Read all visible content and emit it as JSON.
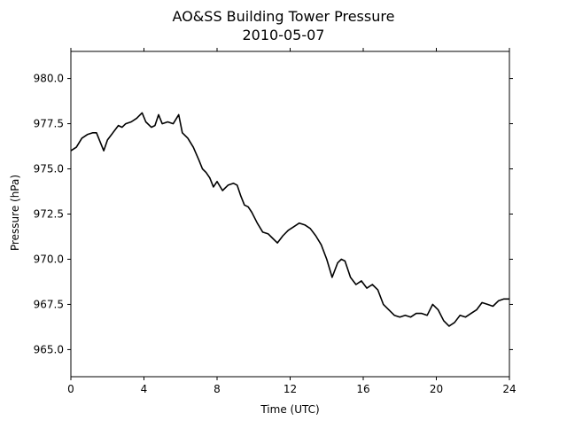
{
  "chart_data": {
    "type": "line",
    "title": "AO&SS Building Tower Pressure",
    "subtitle": "2010-05-07",
    "xlabel": "Time (UTC)",
    "ylabel": "Pressure (hPa)",
    "xlim": [
      0,
      24
    ],
    "ylim": [
      963.5,
      981.5
    ],
    "xticks": [
      0,
      4,
      8,
      12,
      16,
      20,
      24
    ],
    "xtick_labels": [
      "0",
      "4",
      "8",
      "12",
      "16",
      "20",
      "24"
    ],
    "yticks": [
      965.0,
      967.5,
      970.0,
      972.5,
      975.0,
      977.5,
      980.0
    ],
    "ytick_labels": [
      "965.0",
      "967.5",
      "970.0",
      "972.5",
      "975.0",
      "977.5",
      "980.0"
    ],
    "grid": false,
    "line_color": "#000000",
    "series": [
      {
        "x": [
          0,
          0.3,
          0.6,
          0.9,
          1.2,
          1.4,
          1.6,
          1.8,
          2.0,
          2.3,
          2.6,
          2.8,
          3.0,
          3.3,
          3.6,
          3.9,
          4.1,
          4.4,
          4.6,
          4.8,
          5.0,
          5.3,
          5.6,
          5.9,
          6.1,
          6.4,
          6.7,
          7.0,
          7.2,
          7.4,
          7.6,
          7.8,
          8.0,
          8.3,
          8.6,
          8.9,
          9.1,
          9.3,
          9.5,
          9.7,
          9.9,
          10.2,
          10.5,
          10.8,
          11.0,
          11.3,
          11.6,
          11.9,
          12.2,
          12.5,
          12.8,
          13.1,
          13.4,
          13.7,
          14.0,
          14.3,
          14.6,
          14.8,
          15.0,
          15.3,
          15.6,
          15.9,
          16.2,
          16.5,
          16.8,
          17.1,
          17.4,
          17.7,
          18.0,
          18.3,
          18.6,
          18.9,
          19.2,
          19.5,
          19.8,
          20.1,
          20.4,
          20.7,
          21.0,
          21.3,
          21.6,
          21.9,
          22.2,
          22.5,
          22.8,
          23.1,
          23.4,
          23.7,
          24.0
        ],
        "values": [
          976.0,
          976.2,
          976.7,
          976.9,
          977.0,
          977.0,
          976.5,
          976.0,
          976.6,
          977.0,
          977.4,
          977.3,
          977.5,
          977.6,
          977.8,
          978.1,
          977.6,
          977.3,
          977.4,
          978.0,
          977.5,
          977.6,
          977.5,
          978.0,
          977.0,
          976.7,
          976.2,
          975.5,
          975.0,
          974.8,
          974.5,
          974.0,
          974.3,
          973.8,
          974.1,
          974.2,
          974.1,
          973.5,
          973.0,
          972.9,
          972.6,
          972.0,
          971.5,
          971.4,
          971.2,
          970.9,
          971.3,
          971.6,
          971.8,
          972.0,
          971.9,
          971.7,
          971.3,
          970.8,
          970.0,
          969.0,
          969.8,
          970.0,
          969.9,
          969.0,
          968.6,
          968.8,
          968.4,
          968.6,
          968.3,
          967.5,
          967.2,
          966.9,
          966.8,
          966.9,
          966.8,
          967.0,
          967.0,
          966.9,
          967.5,
          967.2,
          966.6,
          966.3,
          966.5,
          966.9,
          966.8,
          967.0,
          967.2,
          967.6,
          967.5,
          967.4,
          967.7,
          967.8,
          967.8
        ]
      }
    ]
  }
}
